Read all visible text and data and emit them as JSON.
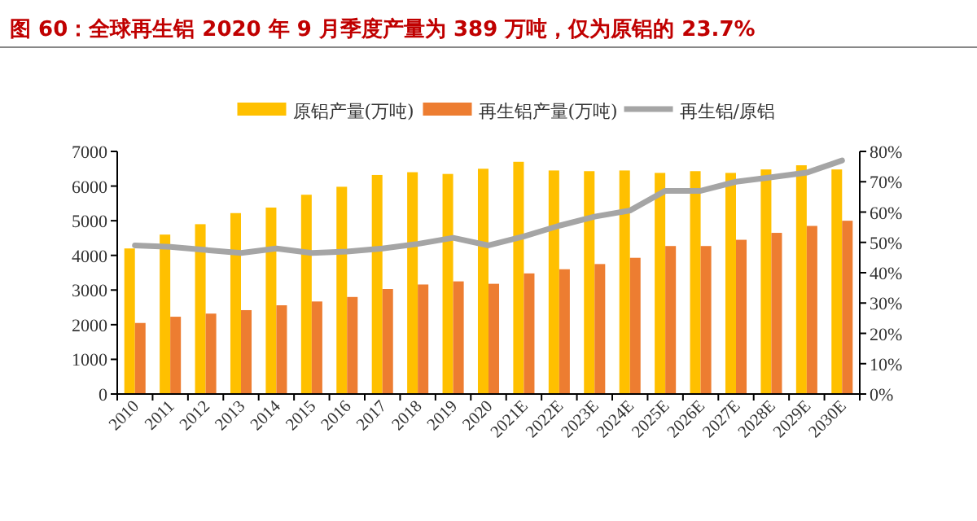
{
  "chart_data": {
    "type": "bar",
    "title": "图 60：全球再生铝 2020 年 9 月季度产量为 389 万吨，仅为原铝的 23.7%",
    "categories": [
      "2010",
      "2011",
      "2012",
      "2013",
      "2014",
      "2015",
      "2016",
      "2017",
      "2018",
      "2019",
      "2020",
      "2021E",
      "2022E",
      "2023E",
      "2024E",
      "2025E",
      "2026E",
      "2027E",
      "2028E",
      "2029E",
      "2030E"
    ],
    "series": [
      {
        "name": "原铝产量(万吨)",
        "color": "#ffc000",
        "values": [
          4200,
          4600,
          4900,
          5220,
          5380,
          5750,
          5980,
          6320,
          6400,
          6350,
          6500,
          6700,
          6450,
          6430,
          6450,
          6380,
          6430,
          6380,
          6480,
          6600,
          6480
        ]
      },
      {
        "name": "再生铝产量(万吨)",
        "color": "#ed7d31",
        "values": [
          2050,
          2230,
          2320,
          2420,
          2560,
          2670,
          2800,
          3030,
          3160,
          3250,
          3180,
          3480,
          3600,
          3750,
          3930,
          4270,
          4270,
          4450,
          4650,
          4850,
          5000
        ]
      },
      {
        "name": "再生铝/原铝",
        "type": "line",
        "axis": "y2",
        "color": "#a5a5a5",
        "values": [
          49,
          48.5,
          47.5,
          46.5,
          48,
          46.5,
          47,
          48,
          49.5,
          51.5,
          49,
          52,
          55.5,
          58.5,
          60.5,
          67,
          67,
          70,
          71.5,
          73,
          77
        ]
      }
    ],
    "ylim": [
      0,
      7000
    ],
    "yticks": [
      0,
      1000,
      2000,
      3000,
      4000,
      5000,
      6000,
      7000
    ],
    "y2lim": [
      0,
      80
    ],
    "y2ticks": [
      {
        "value": 0,
        "label": "0%"
      },
      {
        "value": 10,
        "label": "10%"
      },
      {
        "value": 20,
        "label": "20%"
      },
      {
        "value": 30,
        "label": "30%"
      },
      {
        "value": 40,
        "label": "40%"
      },
      {
        "value": 50,
        "label": "50%"
      },
      {
        "value": 60,
        "label": "60%"
      },
      {
        "value": 70,
        "label": "70%"
      },
      {
        "value": 80,
        "label": "80%"
      }
    ],
    "legend": "top",
    "grid": false
  }
}
